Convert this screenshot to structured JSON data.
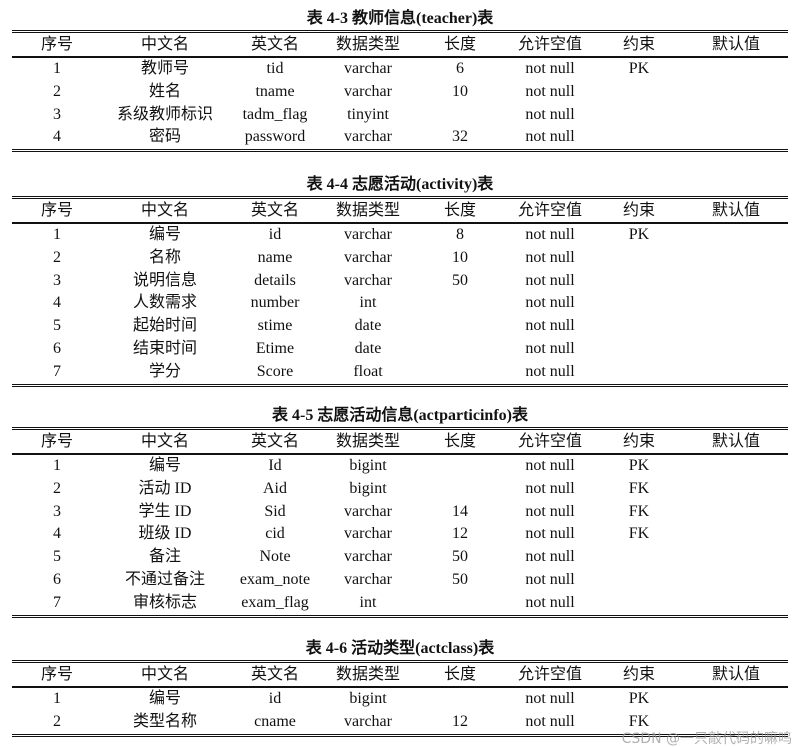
{
  "headers": [
    "序号",
    "中文名",
    "英文名",
    "数据类型",
    "长度",
    "允许空值",
    "约束",
    "默认值"
  ],
  "tables": [
    {
      "title": "表 4-3  教师信息(teacher)表",
      "rows": [
        [
          "1",
          "教师号",
          "tid",
          "varchar",
          "6",
          "not null",
          "PK",
          ""
        ],
        [
          "2",
          "姓名",
          "tname",
          "varchar",
          "10",
          "not null",
          "",
          ""
        ],
        [
          "3",
          "系级教师标识",
          "tadm_flag",
          "tinyint",
          "",
          "not null",
          "",
          ""
        ],
        [
          "4",
          "密码",
          "password",
          "varchar",
          "32",
          "not null",
          "",
          ""
        ]
      ]
    },
    {
      "title": "表 4-4  志愿活动(activity)表",
      "rows": [
        [
          "1",
          "编号",
          "id",
          "varchar",
          "8",
          "not null",
          "PK",
          ""
        ],
        [
          "2",
          "名称",
          "name",
          "varchar",
          "10",
          "not null",
          "",
          ""
        ],
        [
          "3",
          "说明信息",
          "details",
          "varchar",
          "50",
          "not null",
          "",
          ""
        ],
        [
          "4",
          "人数需求",
          "number",
          "int",
          "",
          "not null",
          "",
          ""
        ],
        [
          "5",
          "起始时间",
          "stime",
          "date",
          "",
          "not null",
          "",
          ""
        ],
        [
          "6",
          "结束时间",
          "Etime",
          "date",
          "",
          "not null",
          "",
          ""
        ],
        [
          "7",
          "学分",
          "Score",
          "float",
          "",
          "not null",
          "",
          ""
        ]
      ]
    },
    {
      "title": "表 4-5  志愿活动信息(actparticinfo)表",
      "rows": [
        [
          "1",
          "编号",
          "Id",
          "bigint",
          "",
          "not null",
          "PK",
          ""
        ],
        [
          "2",
          "活动 ID",
          "Aid",
          "bigint",
          "",
          "not null",
          "FK",
          ""
        ],
        [
          "3",
          "学生 ID",
          "Sid",
          "varchar",
          "14",
          "not null",
          "FK",
          ""
        ],
        [
          "4",
          "班级 ID",
          "cid",
          "varchar",
          "12",
          "not null",
          "FK",
          ""
        ],
        [
          "5",
          "备注",
          "Note",
          "varchar",
          "50",
          "not null",
          "",
          ""
        ],
        [
          "6",
          "不通过备注",
          "exam_note",
          "varchar",
          "50",
          "not null",
          "",
          ""
        ],
        [
          "7",
          "审核标志",
          "exam_flag",
          "int",
          "",
          "not null",
          "",
          ""
        ]
      ]
    },
    {
      "title": "表 4-6  活动类型(actclass)表",
      "rows": [
        [
          "1",
          "编号",
          "id",
          "bigint",
          "",
          "not null",
          "PK",
          ""
        ],
        [
          "2",
          "类型名称",
          "cname",
          "varchar",
          "12",
          "not null",
          "FK",
          ""
        ]
      ]
    }
  ],
  "watermark": "CSDN @一只敲代码的嘛呜"
}
